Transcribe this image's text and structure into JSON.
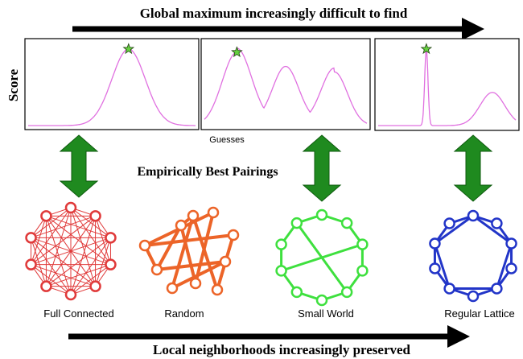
{
  "header": {
    "title": "Global maximum increasingly difficult to find"
  },
  "axes": {
    "y_label": "Score",
    "x_label": "Guesses"
  },
  "middle_label": "Empirically Best Pairings",
  "networks": [
    {
      "label": "Full Connected"
    },
    {
      "label": "Random"
    },
    {
      "label": "Small World"
    },
    {
      "label": "Regular Lattice"
    }
  ],
  "footer": {
    "title": "Local neighborhoods increasingly preserved"
  }
}
